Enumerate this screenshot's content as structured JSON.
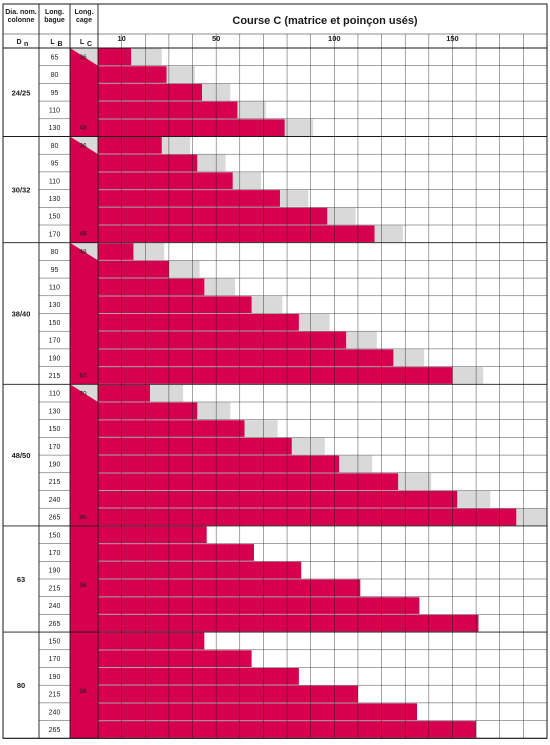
{
  "chart_data": {
    "type": "bar",
    "orientation": "horizontal",
    "title": "Course C (matrice et poinçon usés)",
    "columns": {
      "diameter_header": [
        "Dia. nom.",
        "colonne"
      ],
      "diameter_symbol": "D",
      "diameter_sub": "n",
      "length_header": [
        "Long.",
        "bague"
      ],
      "length_symbol": "L",
      "length_sub": "B",
      "cage_header": [
        "Long.",
        "cage"
      ],
      "cage_symbol": "L",
      "cage_sub": "C"
    },
    "x_ticks": [
      10,
      50,
      100,
      150
    ],
    "xlim": [
      0,
      190
    ],
    "grid": true,
    "colors": {
      "used": "#d6004f",
      "worn": "#d9d9d9",
      "grid": "#1a1a1a"
    },
    "series": [
      {
        "role": "used",
        "color": "#d6004f"
      },
      {
        "role": "worn",
        "color": "#d9d9d9"
      }
    ],
    "groups": [
      {
        "label": "24/25",
        "cage_top": "36",
        "cage_bottom": "48",
        "rows": [
          {
            "length": "65",
            "used": 14,
            "worn": 27
          },
          {
            "length": "80",
            "used": 29,
            "worn": 41
          },
          {
            "length": "95",
            "used": 44,
            "worn": 56
          },
          {
            "length": "110",
            "used": 59,
            "worn": 71
          },
          {
            "length": "130",
            "used": 79,
            "worn": 91
          }
        ]
      },
      {
        "label": "30/32",
        "cage_top": "36",
        "cage_bottom": "48",
        "rows": [
          {
            "length": "80",
            "used": 27,
            "worn": 39
          },
          {
            "length": "95",
            "used": 42,
            "worn": 54
          },
          {
            "length": "110",
            "used": 57,
            "worn": 69
          },
          {
            "length": "130",
            "used": 77,
            "worn": 89
          },
          {
            "length": "150",
            "used": 97,
            "worn": 109
          },
          {
            "length": "170",
            "used": 117,
            "worn": 129
          }
        ]
      },
      {
        "label": "38/40",
        "cage_top": "48",
        "cage_bottom": "60",
        "rows": [
          {
            "length": "80",
            "used": 15,
            "worn": 28
          },
          {
            "length": "95",
            "used": 30,
            "worn": 43
          },
          {
            "length": "110",
            "used": 45,
            "worn": 58
          },
          {
            "length": "130",
            "used": 65,
            "worn": 78
          },
          {
            "length": "150",
            "used": 85,
            "worn": 98
          },
          {
            "length": "170",
            "used": 105,
            "worn": 118
          },
          {
            "length": "190",
            "used": 125,
            "worn": 138
          },
          {
            "length": "215",
            "used": 150,
            "worn": 163
          }
        ]
      },
      {
        "label": "48/50",
        "cage_top": "70",
        "cage_bottom": "86",
        "rows": [
          {
            "length": "110",
            "used": 22,
            "worn": 36
          },
          {
            "length": "130",
            "used": 42,
            "worn": 56
          },
          {
            "length": "150",
            "used": 62,
            "worn": 76
          },
          {
            "length": "170",
            "used": 82,
            "worn": 96
          },
          {
            "length": "190",
            "used": 102,
            "worn": 116
          },
          {
            "length": "215",
            "used": 127,
            "worn": 141
          },
          {
            "length": "240",
            "used": 152,
            "worn": 166
          },
          {
            "length": "265",
            "used": 177,
            "worn": 190
          }
        ]
      },
      {
        "label": "63",
        "cage_top": "",
        "cage_bottom": "98",
        "rows": [
          {
            "length": "150",
            "used": 46
          },
          {
            "length": "170",
            "used": 66
          },
          {
            "length": "190",
            "used": 86
          },
          {
            "length": "215",
            "used": 111
          },
          {
            "length": "240",
            "used": 136
          },
          {
            "length": "265",
            "used": 161
          }
        ]
      },
      {
        "label": "80",
        "cage_top": "",
        "cage_bottom": "98",
        "rows": [
          {
            "length": "150",
            "used": 45
          },
          {
            "length": "170",
            "used": 65
          },
          {
            "length": "190",
            "used": 85
          },
          {
            "length": "215",
            "used": 110
          },
          {
            "length": "240",
            "used": 135
          },
          {
            "length": "265",
            "used": 160
          }
        ]
      }
    ]
  }
}
